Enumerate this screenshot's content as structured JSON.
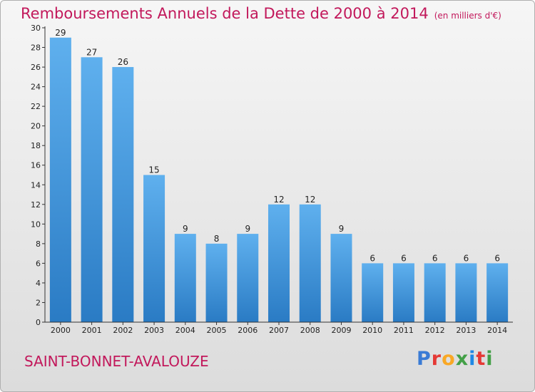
{
  "page": {
    "title": "Remboursements Annuels de la Dette de 2000 à 2014",
    "unit": "(en milliers d'€)",
    "commune": "SAINT-BONNET-AVALOUZE",
    "logo": {
      "text": "Proxiti",
      "colors": [
        "#3a7bd5",
        "#e53935",
        "#f9a825",
        "#43a047",
        "#1e88e5",
        "#e53935",
        "#43a047"
      ]
    }
  },
  "chart_data": {
    "type": "bar",
    "title": "Remboursements Annuels de la Dette de 2000 à 2014",
    "xlabel": "",
    "ylabel": "",
    "categories": [
      "2000",
      "2001",
      "2002",
      "2003",
      "2004",
      "2005",
      "2006",
      "2007",
      "2008",
      "2009",
      "2010",
      "2011",
      "2012",
      "2013",
      "2014"
    ],
    "values": [
      29,
      27,
      26,
      15,
      9,
      8,
      9,
      12,
      12,
      9,
      6,
      6,
      6,
      6,
      6
    ],
    "ylim": [
      0,
      30
    ],
    "yticks": [
      0,
      2,
      4,
      6,
      8,
      10,
      12,
      14,
      16,
      18,
      20,
      22,
      24,
      26,
      28,
      30
    ],
    "grid": false,
    "bar_color": "#3d8fd6",
    "data_labels": true
  }
}
